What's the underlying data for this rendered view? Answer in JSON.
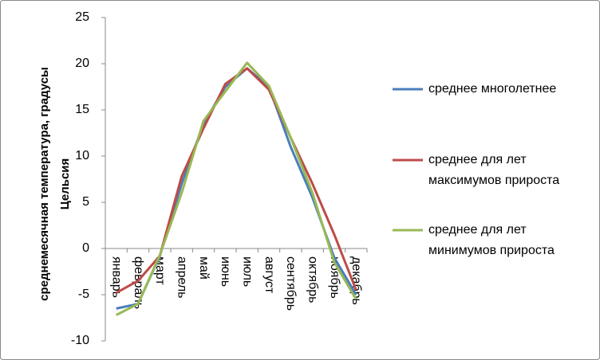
{
  "chart_data": {
    "type": "line",
    "y_label": "среднемесячная температура, градусы Цельсия",
    "categories": [
      "январь",
      "февраль",
      "март",
      "апрель",
      "май",
      "июнь",
      "июль",
      "август",
      "сентябрь",
      "октябрь",
      "ноябрь",
      "декабрь"
    ],
    "series": [
      {
        "name": "среднее многолетнее",
        "color": "#4a7ebb",
        "values": [
          -6.5,
          -6,
          -0.8,
          7,
          13.5,
          17.5,
          19.5,
          17.5,
          11,
          5.5,
          -1,
          -5
        ]
      },
      {
        "name": "среднее для лет максимумов прироста",
        "color": "#be4b48",
        "values": [
          -4.8,
          -3.5,
          -0.8,
          7.8,
          13,
          17.8,
          19.5,
          17.2,
          12,
          7,
          1.5,
          -4.5
        ]
      },
      {
        "name": "среднее для лет минимумов прироста",
        "color": "#98b954",
        "values": [
          -7.2,
          -6,
          -0.7,
          6,
          13.8,
          17,
          20.1,
          17.6,
          12,
          6,
          -1.5,
          -5.5
        ]
      }
    ],
    "ylim": [
      -10,
      25
    ],
    "yticks": [
      -10,
      -5,
      0,
      5,
      10,
      15,
      20,
      25
    ],
    "legend": "right"
  }
}
